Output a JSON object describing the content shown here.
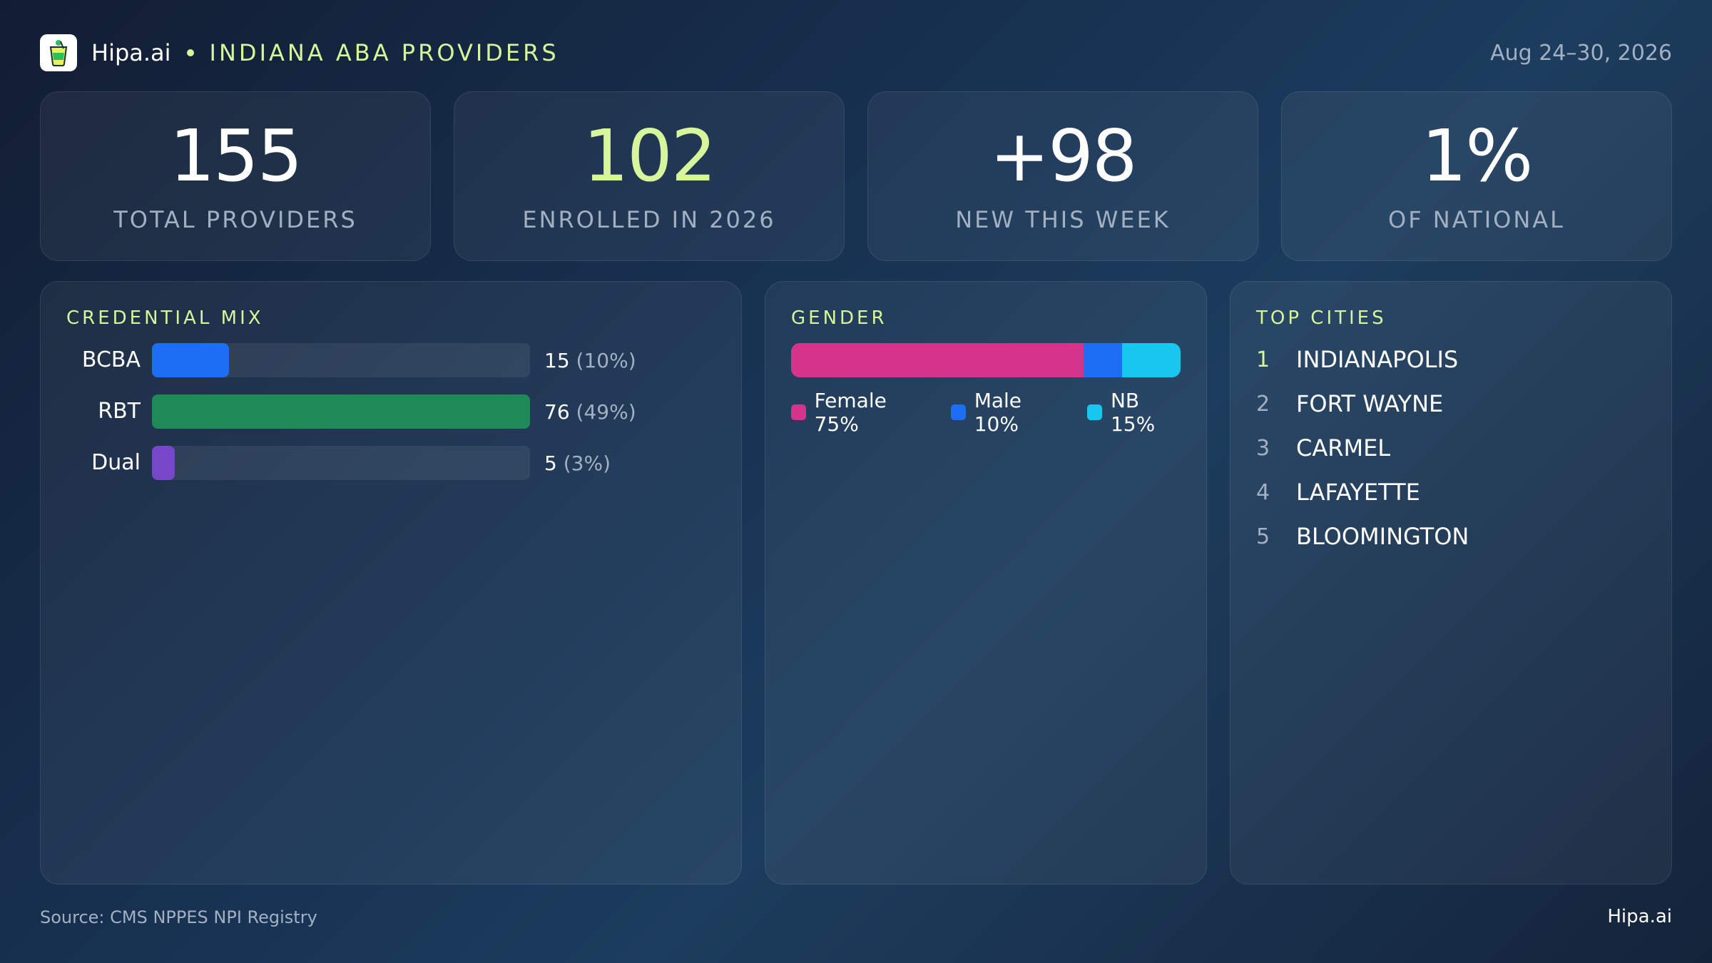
{
  "header": {
    "brand": "Hipa.ai",
    "title": "INDIANA ABA PROVIDERS",
    "date_range": "Aug 24–30, 2026"
  },
  "kpis": [
    {
      "value": "155",
      "label": "TOTAL PROVIDERS"
    },
    {
      "value": "102",
      "label": "ENROLLED IN 2026"
    },
    {
      "value": "+98",
      "label": "NEW THIS WEEK"
    },
    {
      "value": "1%",
      "label": "OF NATIONAL"
    }
  ],
  "credential_mix": {
    "title": "CREDENTIAL MIX",
    "rows": [
      {
        "label": "BCBA",
        "count": "15",
        "pct_text": "(10%)",
        "pct": 10,
        "color": "#1e6ef5"
      },
      {
        "label": "RBT",
        "count": "76",
        "pct_text": "(49%)",
        "pct": 49,
        "color": "#1e8a57"
      },
      {
        "label": "Dual",
        "count": "5",
        "pct_text": "(3%)",
        "pct": 3,
        "color": "#7647c9"
      }
    ]
  },
  "gender": {
    "title": "GENDER",
    "segments": [
      {
        "label": "Female 75%",
        "pct": 75,
        "color": "#d6338a"
      },
      {
        "label": "Male 10%",
        "pct": 10,
        "color": "#1e6ef5"
      },
      {
        "label": "NB 15%",
        "pct": 15,
        "color": "#19c6ee"
      }
    ]
  },
  "top_cities": {
    "title": "TOP CITIES",
    "items": [
      {
        "rank": "1",
        "name": "INDIANAPOLIS"
      },
      {
        "rank": "2",
        "name": "FORT WAYNE"
      },
      {
        "rank": "3",
        "name": "CARMEL"
      },
      {
        "rank": "4",
        "name": "LAFAYETTE"
      },
      {
        "rank": "5",
        "name": "BLOOMINGTON"
      }
    ]
  },
  "footer": {
    "source": "Source: CMS NPPES NPI Registry",
    "brand": "Hipa.ai"
  },
  "colors": {
    "accent": "#d7f59a",
    "muted": "#a3b0c2"
  },
  "icons": {
    "logo": "drink-cup-logo-icon"
  }
}
